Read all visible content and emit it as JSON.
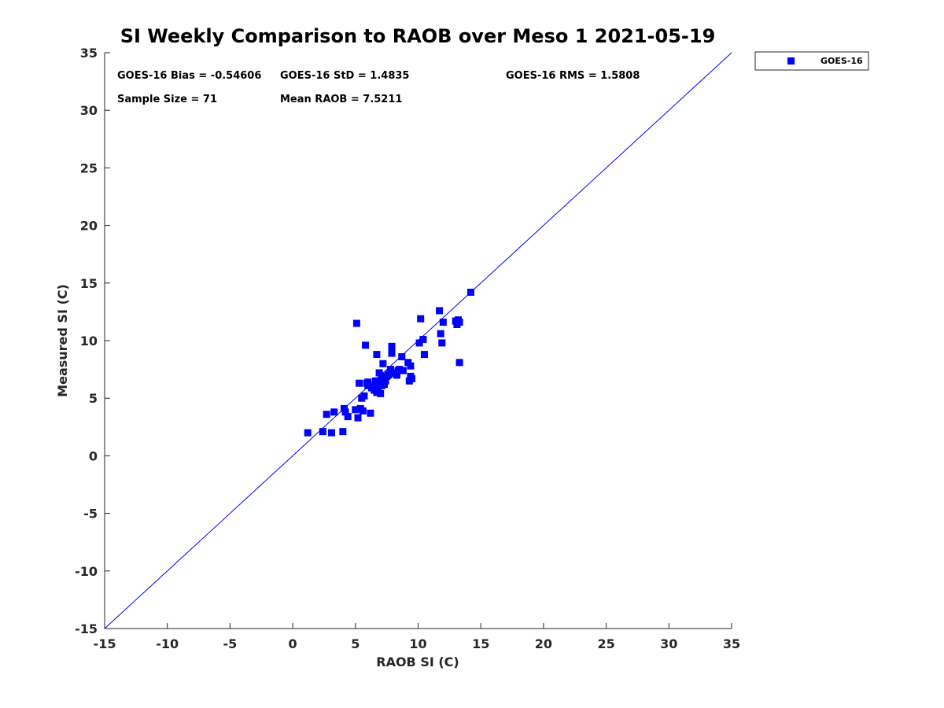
{
  "chart_data": {
    "type": "scatter",
    "title": "SI Weekly Comparison to RAOB over Meso 1 2021-05-19",
    "xlabel": "RAOB SI (C)",
    "ylabel": "Measured SI (C)",
    "xlim": [
      -15,
      35
    ],
    "ylim": [
      -15,
      35
    ],
    "xticks": [
      "-15",
      "-10",
      "-5",
      "0",
      "5",
      "10",
      "15",
      "20",
      "25",
      "30",
      "35"
    ],
    "yticks": [
      "-15",
      "-10",
      "-5",
      "0",
      "5",
      "10",
      "15",
      "20",
      "25",
      "30",
      "35"
    ],
    "grid": false,
    "legend": {
      "location": "outside top-right",
      "entries": [
        "GOES-16"
      ]
    },
    "stats": {
      "bias": "GOES-16 Bias = -0.54606",
      "std": "GOES-16 StD = 1.4835",
      "rms": "GOES-16 RMS = 1.5808",
      "sample_size": "Sample Size = 71",
      "mean_raob": "Mean RAOB = 7.5211"
    },
    "reference_line": {
      "name": "1:1 line",
      "x": [
        -15,
        35
      ],
      "y": [
        -15,
        35
      ],
      "color": "#0000ff"
    },
    "series": [
      {
        "name": "GOES-16",
        "color": "#0000ff",
        "marker": "square",
        "x": [
          1.2,
          2.4,
          2.7,
          3.1,
          3.3,
          4.0,
          4.1,
          4.2,
          4.4,
          5.0,
          5.2,
          5.3,
          5.4,
          5.6,
          5.7,
          5.8,
          5.1,
          6.0,
          6.0,
          6.2,
          6.3,
          6.5,
          6.6,
          6.7,
          6.8,
          6.9,
          7.0,
          7.1,
          7.2,
          7.3,
          7.3,
          7.4,
          7.5,
          7.6,
          7.8,
          7.9,
          7.9,
          8.0,
          8.3,
          8.5,
          8.7,
          8.8,
          9.2,
          9.3,
          9.4,
          9.4,
          9.5,
          10.1,
          10.2,
          10.4,
          10.5,
          11.7,
          11.8,
          11.9,
          12.0,
          13.0,
          13.1,
          13.2,
          13.3,
          13.3,
          14.2,
          6.7,
          7.1,
          6.1,
          6.4,
          6.8,
          7.0,
          8.4,
          5.5,
          7.7,
          5.9
        ],
        "y": [
          2.0,
          2.1,
          3.6,
          2.0,
          3.8,
          2.1,
          4.1,
          3.8,
          3.4,
          4.0,
          3.3,
          6.3,
          4.1,
          3.9,
          5.2,
          9.6,
          11.5,
          6.1,
          6.4,
          3.7,
          5.9,
          5.7,
          6.5,
          5.5,
          6.3,
          7.2,
          5.4,
          6.1,
          8.0,
          6.6,
          6.2,
          6.5,
          6.9,
          7.0,
          7.5,
          8.9,
          9.5,
          7.2,
          7.0,
          7.5,
          8.6,
          7.4,
          8.1,
          6.5,
          6.9,
          7.8,
          6.7,
          9.8,
          11.9,
          10.1,
          8.8,
          12.6,
          10.6,
          9.8,
          11.6,
          11.7,
          11.4,
          11.8,
          11.6,
          8.1,
          14.2,
          8.8,
          6.9,
          6.1,
          6.0,
          5.8,
          6.4,
          7.4,
          5.0,
          7.1,
          6.3
        ]
      }
    ]
  }
}
